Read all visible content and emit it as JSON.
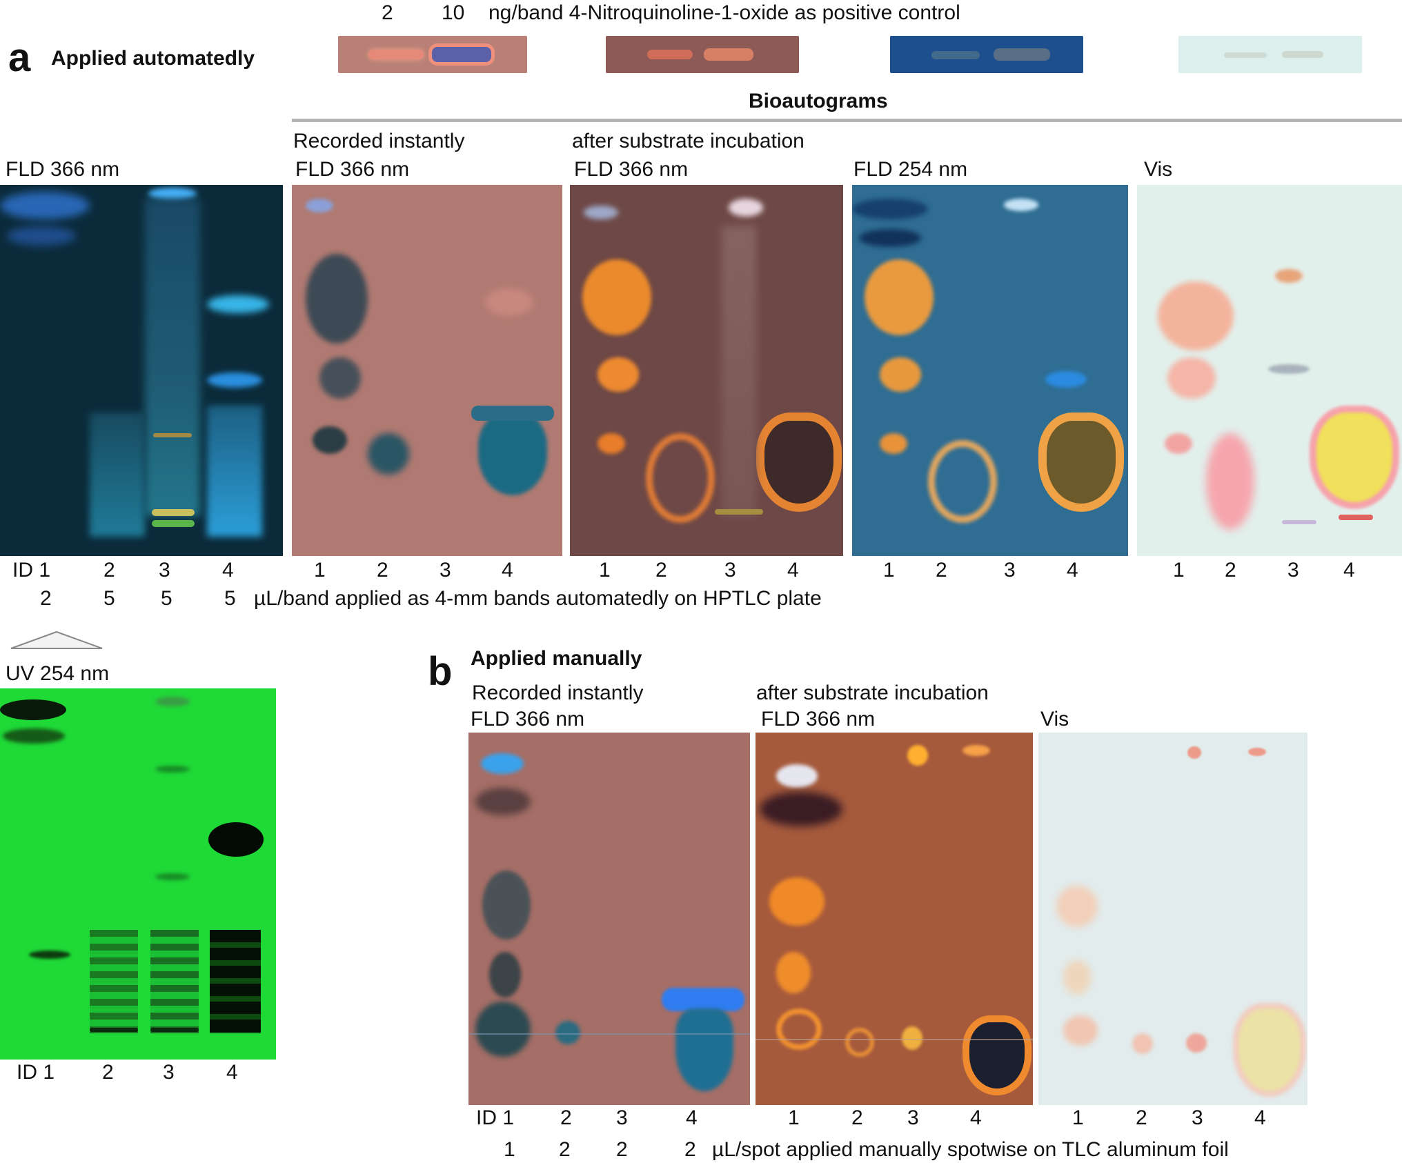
{
  "positive_control": {
    "amounts": [
      "2",
      "10"
    ],
    "caption": "ng/band 4-Nitroquinoline-1-oxide as positive control"
  },
  "panel_a": {
    "letter": "a",
    "title": "Applied automatedly",
    "bioautograms_header": "Bioautograms",
    "plates": {
      "fld366": "FLD 366 nm",
      "recorded_line1": "Recorded instantly",
      "recorded_line2": "FLD 366 nm",
      "incubation_line1": "after substrate incubation",
      "incubation_line2": "FLD 366 nm",
      "fld254": "FLD 254 nm",
      "vis": "Vis",
      "uv254": "UV 254 nm"
    },
    "lane_ids": [
      "ID 1",
      "2",
      "3",
      "4"
    ],
    "lanes": [
      "1",
      "2",
      "3",
      "4"
    ],
    "volumes": [
      "2",
      "5",
      "5",
      "5"
    ],
    "volume_caption": "µL/band  applied as 4-mm bands automatedly on HPTLC plate"
  },
  "panel_b": {
    "letter": "b",
    "title": "Applied manually",
    "plates": {
      "recorded_line1": "Recorded instantly",
      "recorded_line2": "FLD 366 nm",
      "incubation_line1": "after substrate incubation",
      "incubation_line2": "FLD 366 nm",
      "vis": "Vis"
    },
    "lane_ids": [
      "ID 1",
      "2",
      "3",
      "4"
    ],
    "lanes": [
      "1",
      "2",
      "3",
      "4"
    ],
    "volumes": [
      "1",
      "2",
      "2",
      "2"
    ],
    "volume_caption": "µL/spot  applied manually spotwise on TLC aluminum foil"
  }
}
